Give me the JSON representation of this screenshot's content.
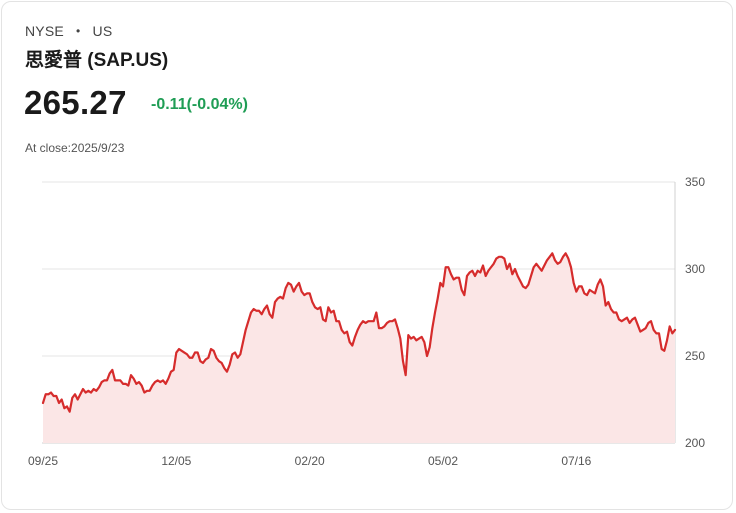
{
  "header": {
    "exchange": "NYSE",
    "region": "US",
    "separator": "•",
    "company_name": "思愛普 (SAP.US)",
    "price": "265.27",
    "change": "-0.11(-0.04%)",
    "close_label": "At close:2025/9/23"
  },
  "colors": {
    "line": "#d62c2c",
    "area_fill": "#fbe6e6",
    "change_text": "#1f9d55",
    "grid": "#e6e6e6"
  },
  "chart_data": {
    "type": "area",
    "title": "",
    "xlabel": "",
    "ylabel": "",
    "ylim": [
      200,
      350
    ],
    "yticks": [
      200,
      250,
      300,
      350
    ],
    "y_axis_position": "right",
    "grid": true,
    "x_ticks": [
      {
        "index": 0,
        "label": "09/25"
      },
      {
        "index": 50,
        "label": "12/05"
      },
      {
        "index": 100,
        "label": "02/20"
      },
      {
        "index": 150,
        "label": "05/02"
      },
      {
        "index": 200,
        "label": "07/16"
      }
    ],
    "series": [
      {
        "name": "SAP.US",
        "values": [
          223,
          228,
          228,
          229,
          227,
          227,
          223,
          225,
          220,
          221,
          218,
          226,
          228,
          225,
          228,
          231,
          229,
          230,
          229,
          231,
          230,
          232,
          235,
          236,
          236,
          240,
          242,
          236,
          236,
          236,
          234,
          234,
          233,
          239,
          237,
          234,
          235,
          233,
          229,
          230,
          230,
          233,
          235,
          236,
          235,
          236,
          234,
          237,
          241,
          242,
          252,
          254,
          253,
          252,
          251,
          249,
          249,
          252,
          252,
          247,
          246,
          248,
          249,
          254,
          253,
          249,
          247,
          246,
          243,
          241,
          245,
          251,
          252,
          249,
          251,
          258,
          265,
          270,
          275,
          277,
          276,
          276,
          274,
          277,
          279,
          274,
          272,
          281,
          283,
          284,
          283,
          289,
          292,
          291,
          287,
          290,
          292,
          287,
          285,
          286,
          286,
          281,
          278,
          277,
          278,
          271,
          270,
          278,
          275,
          276,
          270,
          270,
          265,
          263,
          264,
          258,
          256,
          261,
          265,
          268,
          270,
          269,
          270,
          270,
          270,
          275,
          266,
          266,
          267,
          269,
          270,
          270,
          271,
          266,
          260,
          247,
          239,
          262,
          260,
          261,
          259,
          260,
          261,
          258,
          250,
          255,
          266,
          275,
          283,
          292,
          290,
          301,
          301,
          297,
          294,
          295,
          295,
          288,
          285,
          296,
          298,
          299,
          296,
          299,
          298,
          302,
          296,
          299,
          301,
          303,
          306,
          307,
          307,
          306,
          300,
          303,
          297,
          300,
          296,
          293,
          290,
          289,
          291,
          296,
          301,
          303,
          301,
          299,
          302,
          305,
          307,
          309,
          305,
          303,
          304,
          307,
          309,
          306,
          301,
          292,
          287,
          290,
          290,
          286,
          285,
          288,
          287,
          286,
          291,
          294,
          290,
          279,
          281,
          277,
          275,
          275,
          271,
          270,
          271,
          272,
          269,
          271,
          272,
          268,
          264,
          265,
          266,
          269,
          270,
          265,
          263,
          263,
          254,
          253,
          259,
          267,
          263,
          265
        ]
      }
    ]
  }
}
